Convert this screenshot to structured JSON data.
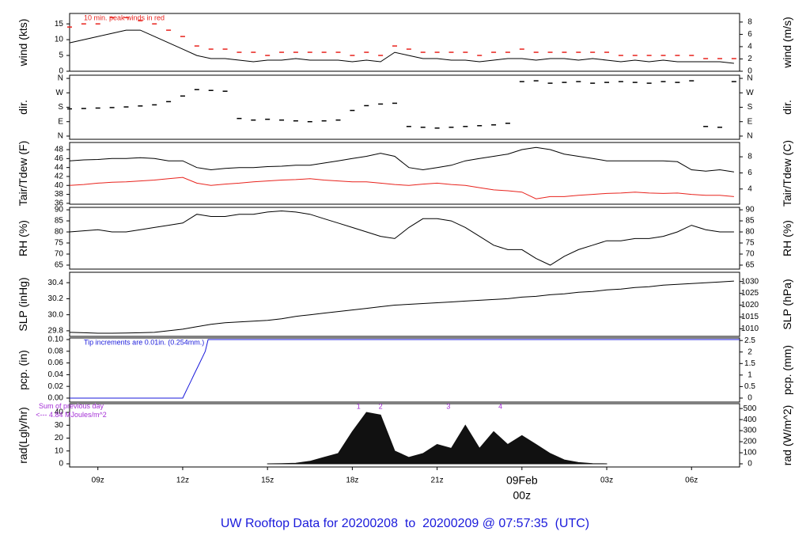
{
  "title": "UW Rooftop Data for 20200208  to  20200209 @ 07:57:35  (UTC)",
  "chart_data": [
    {
      "type": "line",
      "ylabel": "wind (kts)",
      "y2label": "wind (m/s)",
      "annotation": "10 min. peak winds in red",
      "annotation_color": "#e8231d",
      "xlim": [
        8,
        31.7
      ],
      "ylim": [
        0,
        18.3
      ],
      "yticks": [
        0,
        5,
        10,
        15
      ],
      "y2lim": [
        0,
        9.4
      ],
      "y2ticks": [
        0,
        2,
        4,
        6,
        8
      ],
      "x": [
        8,
        8.5,
        9,
        9.5,
        10,
        10.5,
        11,
        11.5,
        12,
        12.5,
        13,
        13.5,
        14,
        14.5,
        15,
        15.5,
        16,
        16.5,
        17,
        17.5,
        18,
        18.5,
        19,
        19.5,
        20,
        20.5,
        21,
        21.5,
        22,
        22.5,
        23,
        23.5,
        24,
        24.5,
        25,
        25.5,
        26,
        26.5,
        27,
        27.5,
        28,
        28.5,
        29,
        29.5,
        30,
        30.5,
        31,
        31.5
      ],
      "series": [
        {
          "color": "#000000",
          "mark": "line",
          "values": [
            9,
            10,
            11,
            12,
            13,
            13,
            11,
            9,
            7,
            5,
            4,
            4,
            3.5,
            3,
            3.5,
            3.5,
            4,
            3.5,
            3.5,
            3.5,
            3,
            3.5,
            3,
            6,
            5,
            4,
            4,
            3.5,
            3.5,
            3,
            3.5,
            4,
            4,
            3.5,
            4,
            4,
            3.5,
            4,
            3.5,
            3,
            3.5,
            3,
            3.5,
            3,
            3,
            3,
            3,
            2.5
          ]
        },
        {
          "color": "#e8231d",
          "mark": "dash",
          "values": [
            14,
            15,
            15,
            17,
            17,
            16,
            15,
            13,
            11,
            8,
            7,
            7,
            6,
            6,
            5,
            6,
            6,
            6,
            6,
            6,
            5,
            6,
            5,
            8,
            7,
            6,
            6,
            6,
            6,
            5,
            6,
            6,
            7,
            6,
            6,
            6,
            6,
            6,
            6,
            5,
            5,
            5,
            5,
            5,
            5,
            4,
            4,
            4
          ]
        }
      ]
    },
    {
      "type": "scatter",
      "ylabel": "dir.",
      "y2label": "dir.",
      "xlim": [
        8,
        31.7
      ],
      "ylim": [
        -20,
        380
      ],
      "yticks": [
        {
          "value": 0,
          "label": "N"
        },
        {
          "value": 90,
          "label": "E"
        },
        {
          "value": 180,
          "label": "S"
        },
        {
          "value": 270,
          "label": "W"
        },
        {
          "value": 360,
          "label": "N"
        }
      ],
      "y2lim": [
        -20,
        380
      ],
      "y2ticks": [
        {
          "value": 0,
          "label": "N"
        },
        {
          "value": 90,
          "label": "E"
        },
        {
          "value": 180,
          "label": "S"
        },
        {
          "value": 270,
          "label": "W"
        },
        {
          "value": 360,
          "label": "N"
        }
      ],
      "x": [
        8,
        8.5,
        9,
        9.5,
        10,
        10.5,
        11,
        11.5,
        12,
        12.5,
        13,
        13.5,
        14,
        14.5,
        15,
        15.5,
        16,
        16.5,
        17,
        17.5,
        18,
        18.5,
        19,
        19.5,
        20,
        20.5,
        21,
        21.5,
        22,
        22.5,
        23,
        23.5,
        24,
        24.5,
        25,
        25.5,
        26,
        26.5,
        27,
        27.5,
        28,
        28.5,
        29,
        29.5,
        30,
        30.5,
        31,
        31.5
      ],
      "series": [
        {
          "color": "#000000",
          "mark": "dash",
          "values": [
            170,
            172,
            175,
            178,
            182,
            188,
            195,
            215,
            250,
            290,
            285,
            280,
            110,
            100,
            105,
            100,
            95,
            90,
            95,
            100,
            160,
            190,
            200,
            205,
            60,
            55,
            50,
            55,
            60,
            65,
            70,
            80,
            340,
            345,
            330,
            335,
            340,
            330,
            335,
            340,
            335,
            330,
            340,
            335,
            345,
            60,
            55,
            340
          ]
        }
      ]
    },
    {
      "type": "line",
      "ylabel": "Tair/Tdew (F)",
      "y2label": "Tair/Tdew (C)",
      "xlim": [
        8,
        31.7
      ],
      "ylim": [
        35.8,
        49.6
      ],
      "yticks": [
        36,
        38,
        40,
        42,
        44,
        46,
        48
      ],
      "y2lim": [
        2.11,
        9.78
      ],
      "y2ticks": [
        4,
        6,
        8
      ],
      "x": [
        8,
        8.5,
        9,
        9.5,
        10,
        10.5,
        11,
        11.5,
        12,
        12.5,
        13,
        13.5,
        14,
        14.5,
        15,
        15.5,
        16,
        16.5,
        17,
        17.5,
        18,
        18.5,
        19,
        19.5,
        20,
        20.5,
        21,
        21.5,
        22,
        22.5,
        23,
        23.5,
        24,
        24.5,
        25,
        25.5,
        26,
        26.5,
        27,
        27.5,
        28,
        28.5,
        29,
        29.5,
        30,
        30.5,
        31,
        31.5
      ],
      "series": [
        {
          "color": "#000000",
          "mark": "line",
          "values": [
            45.5,
            45.7,
            45.8,
            46,
            46,
            46.2,
            46,
            45.5,
            45.5,
            44,
            43.5,
            43.8,
            44,
            44,
            44.2,
            44.3,
            44.5,
            44.5,
            45,
            45.5,
            46,
            46.5,
            47.2,
            46.5,
            44,
            43.5,
            44,
            44.5,
            45.5,
            46,
            46.5,
            47,
            48,
            48.5,
            48,
            47,
            46.5,
            46,
            45.5,
            45.5,
            45.5,
            45.5,
            45.5,
            45.3,
            43.5,
            43.2,
            43.5,
            43
          ]
        },
        {
          "color": "#e8231d",
          "mark": "line",
          "values": [
            40,
            40.2,
            40.5,
            40.7,
            40.8,
            41,
            41.2,
            41.5,
            41.8,
            40.5,
            40,
            40.3,
            40.5,
            40.8,
            41,
            41.2,
            41.3,
            41.5,
            41.2,
            41,
            40.8,
            40.8,
            40.5,
            40.2,
            40,
            40.3,
            40.5,
            40.2,
            40,
            39.5,
            39,
            38.8,
            38.5,
            37,
            37.5,
            37.5,
            37.8,
            38,
            38.2,
            38.3,
            38.5,
            38.3,
            38.2,
            38.3,
            38,
            37.8,
            37.8,
            37.5
          ]
        }
      ]
    },
    {
      "type": "line",
      "ylabel": "RH (%)",
      "y2label": "RH (%)",
      "xlim": [
        8,
        31.7
      ],
      "ylim": [
        63.2,
        91.1
      ],
      "yticks": [
        65,
        70,
        75,
        80,
        85,
        90
      ],
      "y2lim": [
        63.2,
        91.1
      ],
      "y2ticks": [
        65,
        70,
        75,
        80,
        85,
        90
      ],
      "x": [
        8,
        8.5,
        9,
        9.5,
        10,
        10.5,
        11,
        11.5,
        12,
        12.5,
        13,
        13.5,
        14,
        14.5,
        15,
        15.5,
        16,
        16.5,
        17,
        17.5,
        18,
        18.5,
        19,
        19.5,
        20,
        20.5,
        21,
        21.5,
        22,
        22.5,
        23,
        23.5,
        24,
        24.5,
        25,
        25.5,
        26,
        26.5,
        27,
        27.5,
        28,
        28.5,
        29,
        29.5,
        30,
        30.5,
        31,
        31.5
      ],
      "series": [
        {
          "color": "#000000",
          "mark": "line",
          "values": [
            80,
            80.5,
            81,
            80,
            80,
            81,
            82,
            83,
            84,
            88,
            87,
            87,
            88,
            88,
            89,
            89.5,
            89,
            88,
            86,
            84,
            82,
            80,
            78,
            77,
            82,
            86,
            86,
            85,
            82,
            78,
            74,
            72,
            72,
            68,
            65,
            69,
            72,
            74,
            76,
            76,
            77,
            77,
            78,
            80,
            83,
            81,
            80,
            80
          ]
        }
      ]
    },
    {
      "type": "line",
      "ylabel": "SLP (inHg)",
      "y2label": "SLP (hPa)",
      "xlim": [
        8,
        31.7
      ],
      "ylim": [
        29.73,
        30.53
      ],
      "yticks": [
        29.8,
        {
          "value": 30,
          "label": "30.0"
        },
        30.2,
        30.4
      ],
      "y2lim": [
        1006.8,
        1033.9
      ],
      "y2ticks": [
        1010,
        1015,
        1020,
        1025,
        1030
      ],
      "x": [
        8,
        8.5,
        9,
        9.5,
        10,
        10.5,
        11,
        11.5,
        12,
        12.5,
        13,
        13.5,
        14,
        14.5,
        15,
        15.5,
        16,
        16.5,
        17,
        17.5,
        18,
        18.5,
        19,
        19.5,
        20,
        20.5,
        21,
        21.5,
        22,
        22.5,
        23,
        23.5,
        24,
        24.5,
        25,
        25.5,
        26,
        26.5,
        27,
        27.5,
        28,
        28.5,
        29,
        29.5,
        30,
        30.5,
        31,
        31.5
      ],
      "series": [
        {
          "color": "#000000",
          "mark": "line",
          "values": [
            29.78,
            29.775,
            29.77,
            29.77,
            29.772,
            29.775,
            29.78,
            29.8,
            29.82,
            29.85,
            29.88,
            29.9,
            29.91,
            29.92,
            29.93,
            29.95,
            29.98,
            30.0,
            30.02,
            30.04,
            30.06,
            30.08,
            30.1,
            30.12,
            30.13,
            30.14,
            30.15,
            30.16,
            30.17,
            30.18,
            30.19,
            30.2,
            30.22,
            30.23,
            30.25,
            30.26,
            30.28,
            30.29,
            30.31,
            30.32,
            30.34,
            30.35,
            30.37,
            30.38,
            30.39,
            30.4,
            30.41,
            30.42
          ]
        }
      ]
    },
    {
      "type": "line",
      "ylabel": "pcp. (in)",
      "y2label": "pcp. (mm)",
      "annotation": "Tip increments are 0.01in. (0.254mm.)",
      "annotation_color": "#1a1adb",
      "xlim": [
        8,
        31.7
      ],
      "ylim": [
        -0.0068,
        0.1027
      ],
      "yticks": [
        {
          "value": 0,
          "label": "0.00"
        },
        0.02,
        0.04,
        0.06,
        0.08,
        {
          "value": 0.1,
          "label": "0.10"
        }
      ],
      "y2lim": [
        -0.173,
        2.61
      ],
      "y2ticks": [
        0,
        0.5,
        1,
        1.5,
        2,
        2.5
      ],
      "x": [
        8,
        12,
        12.1,
        12.2,
        12.3,
        12.4,
        12.5,
        12.6,
        12.7,
        12.8,
        12.9,
        31.7
      ],
      "series": [
        {
          "color": "#1a1adb",
          "mark": "line",
          "values": [
            0,
            0,
            0.01,
            0.02,
            0.03,
            0.04,
            0.05,
            0.06,
            0.07,
            0.08,
            0.1,
            0.1
          ]
        }
      ]
    },
    {
      "type": "area",
      "ylabel": "rad(Lgly/hr)",
      "y2label": "rad (W/m^2)",
      "annotation": "Sum of previous day",
      "annotation2": "<--- 4.84 MJoules/m^2",
      "annotation_color": "#a42fd6",
      "xlim": [
        8,
        31.7
      ],
      "ylim": [
        -2.46,
        46.8
      ],
      "yticks": [
        0,
        10,
        20,
        30,
        40
      ],
      "y2lim": [
        -28.6,
        544
      ],
      "y2ticks": [
        0,
        100,
        200,
        300,
        400,
        500
      ],
      "xticks": [
        {
          "value": 9,
          "label": "09z"
        },
        {
          "value": 12,
          "label": "12z"
        },
        {
          "value": 15,
          "label": "15z"
        },
        {
          "value": 18,
          "label": "18z"
        },
        {
          "value": 21,
          "label": "21z"
        },
        {
          "value": 24,
          "label": "09Feb"
        },
        {
          "value": 27,
          "label": "03z"
        },
        {
          "value": 30,
          "label": "06z"
        }
      ],
      "xtick_sublabel": "00z",
      "markers": {
        "x": [
          18.22,
          19.0,
          21.4,
          23.24
        ],
        "labels": [
          "1",
          "2",
          "3",
          "4"
        ]
      },
      "x": [
        15,
        15.5,
        16,
        16.5,
        17,
        17.5,
        18,
        18.5,
        19,
        19.5,
        20,
        20.5,
        21,
        21.5,
        22,
        22.5,
        23,
        23.5,
        24,
        24.5,
        25,
        25.5,
        26,
        26.5,
        27
      ],
      "series": [
        {
          "color": "#111111",
          "mark": "area",
          "values": [
            0,
            0.2,
            0.5,
            2,
            5,
            8,
            25,
            40,
            38,
            10,
            5,
            8,
            15,
            12,
            30,
            12,
            25,
            15,
            22,
            15,
            8,
            3,
            1,
            0.2,
            0
          ]
        }
      ]
    }
  ]
}
